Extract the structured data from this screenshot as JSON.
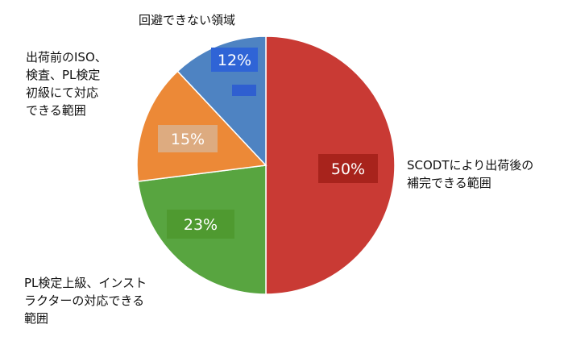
{
  "chart_data": {
    "type": "pie",
    "title": "",
    "slices": [
      {
        "label": "SCODTにより出荷後の補完できる範囲",
        "label_lines": [
          "SCODTにより出荷後の",
          "補完できる範囲"
        ],
        "value": 50,
        "value_label": "50%",
        "color": "#c93a34",
        "tag_color": "#a8231c"
      },
      {
        "label": "PL検定上級、インストラクターの対応できる範囲",
        "label_lines": [
          "PL検定上級、インスト",
          "ラクターの対応できる",
          "範囲"
        ],
        "value": 23,
        "value_label": "23%",
        "color": "#58a540",
        "tag_color": "#4f9a30"
      },
      {
        "label": "出荷前のISO、検査、PL検定初級にて対応できる範囲",
        "label_lines": [
          "出荷前のISO、",
          "検査、PL検定",
          "初級にて対応",
          "できる範囲"
        ],
        "value": 15,
        "value_label": "15%",
        "color": "#ec8937",
        "tag_color": "#ddab80"
      },
      {
        "label": "回避できない領域",
        "label_lines": [
          "回避できない領域"
        ],
        "value": 12,
        "value_label": "12%",
        "color": "#4e83c2",
        "tag_color": "#2f64d6"
      }
    ],
    "start_angle_deg": 0,
    "direction": "clockwise",
    "legend": "none"
  }
}
